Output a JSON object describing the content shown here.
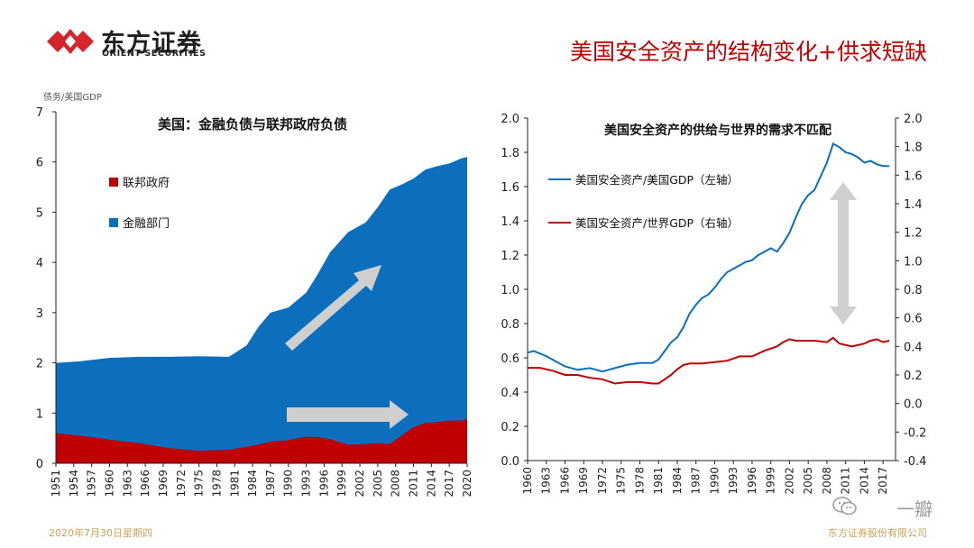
{
  "header": {
    "logo_cn": "东方证券",
    "logo_en": "ORIENT SECURITIES",
    "slide_title": "美国安全资产的结构变化+供求短缺",
    "brand_color": "#d4242c"
  },
  "footer": {
    "date": "2020年7月30日星期四",
    "company": "东方证券股份有限公司",
    "watermark": "一瓣"
  },
  "chart_data": [
    {
      "type": "area",
      "stacked": true,
      "title": "美国：金融负债与联邦政府负债",
      "units_label": "债务/美国GDP",
      "x_ticks": [
        "1951",
        "1954",
        "1957",
        "1960",
        "1963",
        "1966",
        "1969",
        "1972",
        "1975",
        "1978",
        "1981",
        "1984",
        "1987",
        "1990",
        "1993",
        "1996",
        "1999",
        "2002",
        "2005",
        "2008",
        "2011",
        "2014",
        "2017",
        "2020"
      ],
      "ylim": [
        0,
        7
      ],
      "y_ticks": [
        "0",
        "1",
        "2",
        "3",
        "4",
        "5",
        "6",
        "7"
      ],
      "legend_position": "top-left",
      "grid": false,
      "x": [
        1951,
        1955,
        1960,
        1965,
        1970,
        1975,
        1980,
        1983,
        1985,
        1987,
        1990,
        1993,
        1995,
        1997,
        2000,
        2003,
        2005,
        2007,
        2009,
        2011,
        2013,
        2015,
        2017,
        2019,
        2020
      ],
      "series": [
        {
          "name": "联邦政府",
          "color": "#c00000",
          "values": [
            0.6,
            0.55,
            0.47,
            0.4,
            0.3,
            0.25,
            0.27,
            0.33,
            0.37,
            0.43,
            0.46,
            0.53,
            0.52,
            0.48,
            0.37,
            0.38,
            0.4,
            0.38,
            0.55,
            0.72,
            0.8,
            0.82,
            0.85,
            0.85,
            0.88
          ]
        },
        {
          "name": "金融部门",
          "color": "#0b6fbe",
          "values": [
            1.4,
            1.48,
            1.63,
            1.72,
            1.82,
            1.88,
            1.85,
            2.02,
            2.35,
            2.57,
            2.64,
            2.87,
            3.26,
            3.72,
            4.23,
            4.42,
            4.7,
            5.07,
            5.0,
            4.95,
            5.05,
            5.1,
            5.12,
            5.22,
            5.22
          ]
        }
      ],
      "arrows": [
        "up-right",
        "right"
      ]
    },
    {
      "type": "line",
      "title": "美国安全资产的供给与世界的需求不匹配",
      "x_ticks": [
        "1960",
        "1963",
        "1966",
        "1969",
        "1972",
        "1975",
        "1978",
        "1981",
        "1984",
        "1987",
        "1990",
        "1993",
        "1996",
        "1999",
        "2002",
        "2005",
        "2008",
        "2011",
        "2014",
        "2017"
      ],
      "ylim_left": [
        0.0,
        2.0
      ],
      "y_ticks_left": [
        "0.0",
        "0.2",
        "0.4",
        "0.6",
        "0.8",
        "1.0",
        "1.2",
        "1.4",
        "1.6",
        "1.8",
        "2.0"
      ],
      "ylim_right": [
        -0.4,
        2.0
      ],
      "y_ticks_right": [
        "-0.4",
        "-0.2",
        "0.0",
        "0.2",
        "0.4",
        "0.6",
        "0.8",
        "1.0",
        "1.2",
        "1.4",
        "1.6",
        "1.8",
        "2.0"
      ],
      "legend_position": "top-left",
      "grid": false,
      "series": [
        {
          "name": "美国安全资产/美国GDP（左轴）",
          "axis": "left",
          "color": "#0b6fbe",
          "x": [
            1960,
            1961,
            1963,
            1965,
            1966,
            1968,
            1970,
            1972,
            1973,
            1974,
            1975,
            1976,
            1978,
            1980,
            1981,
            1982,
            1983,
            1984,
            1985,
            1986,
            1987,
            1988,
            1989,
            1990,
            1991,
            1992,
            1993,
            1994,
            1995,
            1996,
            1997,
            1998,
            1999,
            2000,
            2001,
            2002,
            2003,
            2004,
            2005,
            2006,
            2007,
            2008,
            2009,
            2010,
            2011,
            2012,
            2013,
            2014,
            2015,
            2016,
            2017,
            2018
          ],
          "values": [
            0.63,
            0.64,
            0.61,
            0.57,
            0.55,
            0.53,
            0.54,
            0.52,
            0.53,
            0.54,
            0.55,
            0.56,
            0.57,
            0.57,
            0.59,
            0.64,
            0.69,
            0.72,
            0.78,
            0.86,
            0.91,
            0.95,
            0.97,
            1.01,
            1.06,
            1.1,
            1.12,
            1.14,
            1.16,
            1.17,
            1.2,
            1.22,
            1.24,
            1.22,
            1.27,
            1.33,
            1.42,
            1.5,
            1.55,
            1.58,
            1.66,
            1.74,
            1.85,
            1.83,
            1.8,
            1.79,
            1.77,
            1.74,
            1.75,
            1.73,
            1.72,
            1.72
          ]
        },
        {
          "name": "美国安全资产/世界GDP（右轴）",
          "axis": "right",
          "color": "#c00000",
          "x": [
            1960,
            1962,
            1964,
            1966,
            1968,
            1970,
            1972,
            1974,
            1976,
            1978,
            1980,
            1981,
            1982,
            1983,
            1984,
            1985,
            1986,
            1988,
            1990,
            1992,
            1994,
            1996,
            1998,
            2000,
            2001,
            2002,
            2003,
            2004,
            2006,
            2008,
            2009,
            2010,
            2012,
            2014,
            2015,
            2016,
            2017,
            2018
          ],
          "values": [
            0.25,
            0.25,
            0.23,
            0.2,
            0.2,
            0.18,
            0.17,
            0.14,
            0.15,
            0.15,
            0.14,
            0.14,
            0.17,
            0.2,
            0.24,
            0.27,
            0.28,
            0.28,
            0.29,
            0.3,
            0.33,
            0.33,
            0.37,
            0.4,
            0.43,
            0.45,
            0.44,
            0.44,
            0.44,
            0.43,
            0.46,
            0.42,
            0.4,
            0.42,
            0.44,
            0.45,
            0.43,
            0.44
          ]
        }
      ],
      "arrow": "double-vertical"
    }
  ]
}
